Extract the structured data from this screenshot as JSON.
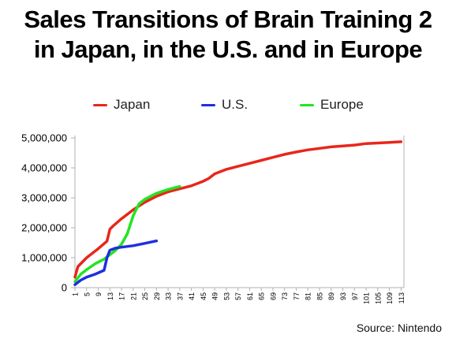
{
  "title_line1": "Sales Transitions of Brain Training 2",
  "title_line2": "in Japan, in the U.S. and in Europe",
  "source": "Source: Nintendo",
  "colors": {
    "japan": "#e8261a",
    "us": "#1f2ee0",
    "europe": "#22e522",
    "axis": "#b0b0b0"
  },
  "chart_data": {
    "type": "line",
    "title": "Sales Transitions of Brain Training 2 in Japan, in the U.S. and in Europe",
    "xlim": [
      1,
      114
    ],
    "ylim": [
      0,
      5000000
    ],
    "x_ticks": [
      1,
      5,
      9,
      13,
      17,
      21,
      25,
      29,
      33,
      37,
      41,
      45,
      49,
      53,
      57,
      61,
      65,
      69,
      73,
      77,
      81,
      85,
      89,
      93,
      97,
      101,
      105,
      109,
      113
    ],
    "y_ticks": [
      0,
      1000000,
      2000000,
      3000000,
      4000000,
      5000000
    ],
    "y_tick_labels": [
      "0",
      "1,000,000",
      "2,000,000",
      "3,000,000",
      "4,000,000",
      "5,000,000"
    ],
    "grid": false,
    "legend_position": "top",
    "series": [
      {
        "name": "Japan",
        "x": [
          1,
          2,
          5,
          9,
          12,
          13,
          14,
          17,
          21,
          25,
          29,
          33,
          37,
          41,
          45,
          47,
          49,
          53,
          57,
          61,
          65,
          69,
          73,
          77,
          81,
          85,
          89,
          93,
          97,
          101,
          105,
          109,
          113
        ],
        "y": [
          350000,
          700000,
          1000000,
          1300000,
          1550000,
          1950000,
          2050000,
          2300000,
          2600000,
          2850000,
          3050000,
          3200000,
          3300000,
          3400000,
          3550000,
          3650000,
          3800000,
          3950000,
          4050000,
          4150000,
          4250000,
          4350000,
          4450000,
          4530000,
          4600000,
          4650000,
          4700000,
          4730000,
          4760000,
          4810000,
          4830000,
          4850000,
          4870000
        ]
      },
      {
        "name": "U.S.",
        "x": [
          1,
          3,
          5,
          8,
          11,
          12,
          13,
          15,
          17,
          21,
          25,
          29
        ],
        "y": [
          100000,
          250000,
          350000,
          450000,
          580000,
          1000000,
          1250000,
          1320000,
          1350000,
          1400000,
          1480000,
          1560000
        ]
      },
      {
        "name": "Europe",
        "x": [
          1,
          3,
          5,
          8,
          11,
          13,
          15,
          17,
          19,
          21,
          23,
          25,
          27,
          29,
          33,
          37
        ],
        "y": [
          200000,
          450000,
          600000,
          800000,
          950000,
          1100000,
          1250000,
          1450000,
          1800000,
          2400000,
          2800000,
          2950000,
          3050000,
          3150000,
          3280000,
          3380000
        ]
      }
    ]
  }
}
